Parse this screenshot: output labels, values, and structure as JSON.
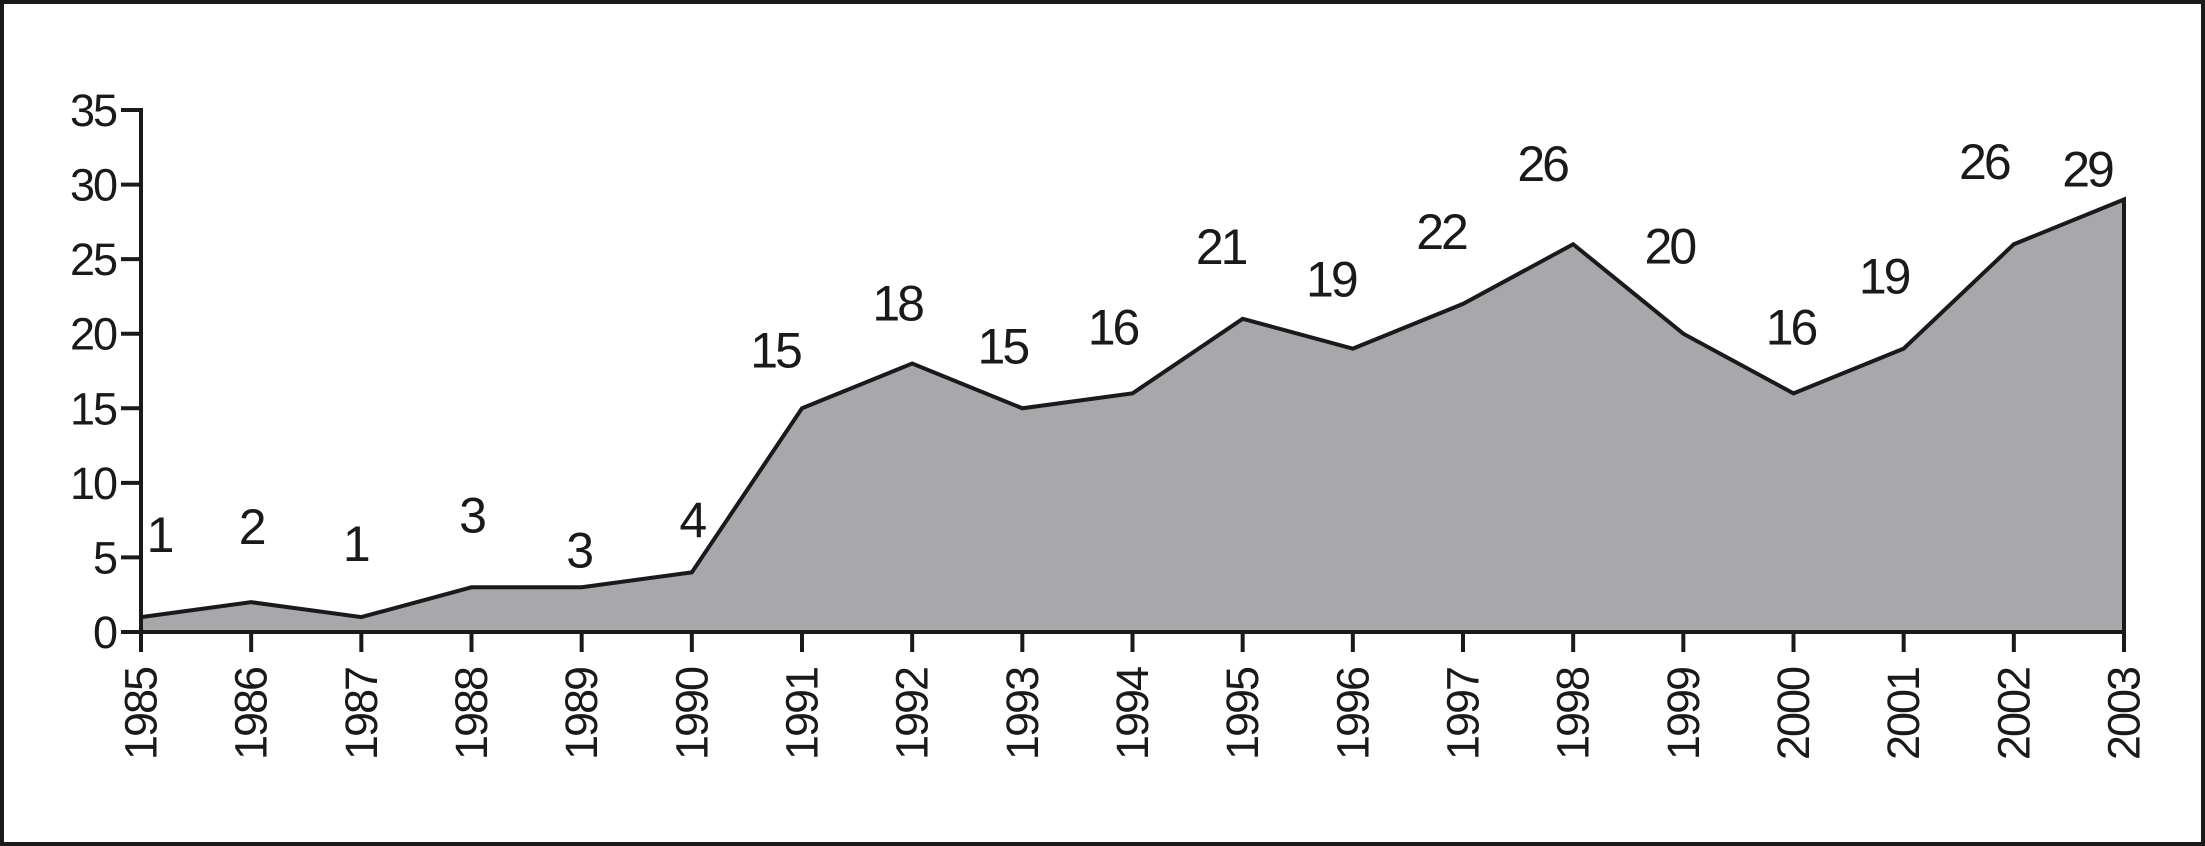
{
  "chart_data": {
    "type": "area",
    "categories": [
      "1985",
      "1986",
      "1987",
      "1988",
      "1989",
      "1990",
      "1991",
      "1992",
      "1993",
      "1994",
      "1995",
      "1996",
      "1997",
      "1998",
      "1999",
      "2000",
      "2001",
      "2002",
      "2003"
    ],
    "values": [
      1,
      2,
      1,
      3,
      3,
      4,
      15,
      18,
      15,
      16,
      21,
      19,
      22,
      26,
      20,
      16,
      19,
      26,
      29
    ],
    "data_labels": [
      "1",
      "2",
      "1",
      "3",
      "3",
      "4",
      "15",
      "18",
      "15",
      "16",
      "21",
      "19",
      "22",
      "26",
      "20",
      "16",
      "19",
      "26",
      "29"
    ],
    "y_ticks": [
      "0",
      "5",
      "10",
      "15",
      "20",
      "25",
      "30",
      "35"
    ],
    "ylim": [
      0,
      35
    ],
    "y_tick_step": 5,
    "title": "",
    "xlabel": "",
    "ylabel": "",
    "grid": false,
    "legend": null,
    "x_label_rotation": -90,
    "area_fill_color": "#a8a8ac",
    "line_color": "#1a1a1a",
    "text_color": "#1a1a1a",
    "frame_border_color": "#1a1a1a"
  }
}
